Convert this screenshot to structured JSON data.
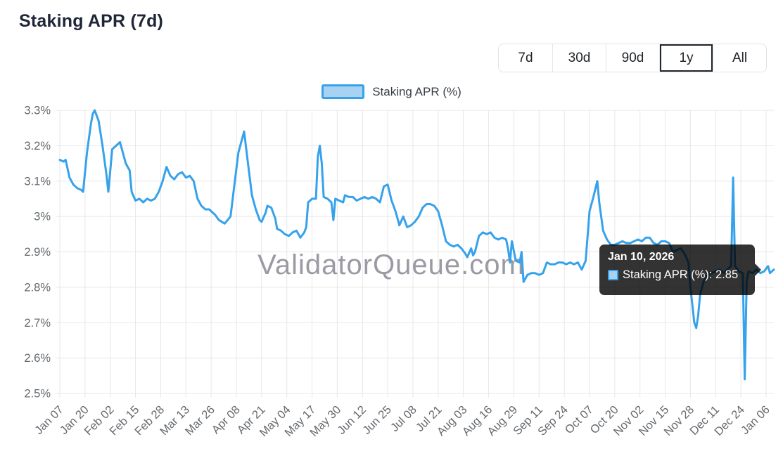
{
  "page": {
    "title": "Staking APR (7d)"
  },
  "range_buttons": {
    "items": [
      {
        "label": "7d",
        "selected": false
      },
      {
        "label": "30d",
        "selected": false
      },
      {
        "label": "90d",
        "selected": false
      },
      {
        "label": "1y",
        "selected": true
      },
      {
        "label": "All",
        "selected": false
      }
    ]
  },
  "legend": {
    "label": "Staking APR (%)"
  },
  "tooltip": {
    "title": "Jan 10, 2026",
    "body": "Staking APR (%): 2.85"
  },
  "colors": {
    "accent": "#36A2EB",
    "accent_fill": "#A8D2F2",
    "title_text": "#1f2638",
    "tooltip_bg": "rgba(0,0,0,0.8)"
  },
  "chart_data": {
    "type": "line",
    "title": "Staking APR (7d)",
    "x_unit": "days since Jan 07 (daily samples, Jan 07 2025 - Jan 10 2026)",
    "ylabel": "Staking APR (%)",
    "xlim": [
      0,
      368
    ],
    "ylim": [
      2.5,
      3.3
    ],
    "grid": true,
    "grid_color": "#e7e7e7",
    "tick_color": "#65696d",
    "line_color": "#36A2EB",
    "watermark": "ValidatorQueue.com",
    "watermark_color": "#9a9aa4",
    "legend_position": "top-center",
    "y_ticks": [
      {
        "pos": 3.3,
        "label": "3.3%"
      },
      {
        "pos": 3.2,
        "label": "3.2%"
      },
      {
        "pos": 3.1,
        "label": "3.1%"
      },
      {
        "pos": 3.0,
        "label": "3%"
      },
      {
        "pos": 2.9,
        "label": "2.9%"
      },
      {
        "pos": 2.8,
        "label": "2.8%"
      },
      {
        "pos": 2.7,
        "label": "2.7%"
      },
      {
        "pos": 2.6,
        "label": "2.6%"
      },
      {
        "pos": 2.5,
        "label": "2.5%"
      }
    ],
    "x_ticks": [
      {
        "pos": 0,
        "label": "Jan 07"
      },
      {
        "pos": 13,
        "label": "Jan 20"
      },
      {
        "pos": 26,
        "label": "Feb 02"
      },
      {
        "pos": 39,
        "label": "Feb 15"
      },
      {
        "pos": 52,
        "label": "Feb 28"
      },
      {
        "pos": 65,
        "label": "Mar 13"
      },
      {
        "pos": 78,
        "label": "Mar 26"
      },
      {
        "pos": 91,
        "label": "Apr 08"
      },
      {
        "pos": 104,
        "label": "Apr 21"
      },
      {
        "pos": 117,
        "label": "May 04"
      },
      {
        "pos": 130,
        "label": "May 17"
      },
      {
        "pos": 143,
        "label": "May 30"
      },
      {
        "pos": 156,
        "label": "Jun 12"
      },
      {
        "pos": 169,
        "label": "Jun 25"
      },
      {
        "pos": 182,
        "label": "Jul 08"
      },
      {
        "pos": 195,
        "label": "Jul 21"
      },
      {
        "pos": 208,
        "label": "Aug 03"
      },
      {
        "pos": 221,
        "label": "Aug 16"
      },
      {
        "pos": 234,
        "label": "Aug 29"
      },
      {
        "pos": 247,
        "label": "Sep 11"
      },
      {
        "pos": 260,
        "label": "Sep 24"
      },
      {
        "pos": 273,
        "label": "Oct 07"
      },
      {
        "pos": 286,
        "label": "Oct 20"
      },
      {
        "pos": 299,
        "label": "Nov 02"
      },
      {
        "pos": 312,
        "label": "Nov 15"
      },
      {
        "pos": 325,
        "label": "Nov 28"
      },
      {
        "pos": 338,
        "label": "Dec 11"
      },
      {
        "pos": 351,
        "label": "Dec 24"
      },
      {
        "pos": 364,
        "label": "Jan 06"
      }
    ],
    "series": [
      {
        "name": "Staking APR (%)",
        "color": "#36A2EB",
        "points": [
          [
            0,
            3.16
          ],
          [
            2,
            3.155
          ],
          [
            3,
            3.16
          ],
          [
            5,
            3.11
          ],
          [
            7,
            3.09
          ],
          [
            9,
            3.08
          ],
          [
            11,
            3.075
          ],
          [
            12,
            3.07
          ],
          [
            14,
            3.18
          ],
          [
            16,
            3.26
          ],
          [
            17,
            3.29
          ],
          [
            18,
            3.3
          ],
          [
            20,
            3.27
          ],
          [
            22,
            3.2
          ],
          [
            24,
            3.12
          ],
          [
            25,
            3.07
          ],
          [
            27,
            3.19
          ],
          [
            29,
            3.2
          ],
          [
            31,
            3.21
          ],
          [
            32,
            3.19
          ],
          [
            34,
            3.15
          ],
          [
            36,
            3.13
          ],
          [
            37,
            3.07
          ],
          [
            39,
            3.045
          ],
          [
            41,
            3.05
          ],
          [
            43,
            3.04
          ],
          [
            45,
            3.05
          ],
          [
            47,
            3.045
          ],
          [
            49,
            3.05
          ],
          [
            51,
            3.07
          ],
          [
            53,
            3.1
          ],
          [
            55,
            3.14
          ],
          [
            57,
            3.115
          ],
          [
            59,
            3.105
          ],
          [
            61,
            3.12
          ],
          [
            63,
            3.125
          ],
          [
            65,
            3.11
          ],
          [
            67,
            3.115
          ],
          [
            69,
            3.1
          ],
          [
            71,
            3.05
          ],
          [
            73,
            3.03
          ],
          [
            75,
            3.02
          ],
          [
            77,
            3.02
          ],
          [
            78,
            3.015
          ],
          [
            80,
            3.005
          ],
          [
            82,
            2.99
          ],
          [
            85,
            2.98
          ],
          [
            88,
            3.0
          ],
          [
            90,
            3.09
          ],
          [
            92,
            3.18
          ],
          [
            95,
            3.24
          ],
          [
            97,
            3.15
          ],
          [
            99,
            3.06
          ],
          [
            101,
            3.02
          ],
          [
            103,
            2.99
          ],
          [
            104,
            2.985
          ],
          [
            106,
            3.01
          ],
          [
            107,
            3.03
          ],
          [
            109,
            3.025
          ],
          [
            111,
            2.995
          ],
          [
            112,
            2.965
          ],
          [
            114,
            2.96
          ],
          [
            116,
            2.95
          ],
          [
            118,
            2.945
          ],
          [
            120,
            2.955
          ],
          [
            122,
            2.96
          ],
          [
            124,
            2.94
          ],
          [
            126,
            2.955
          ],
          [
            127,
            2.97
          ],
          [
            128,
            3.04
          ],
          [
            130,
            3.05
          ],
          [
            132,
            3.05
          ],
          [
            133,
            3.17
          ],
          [
            134,
            3.2
          ],
          [
            135,
            3.15
          ],
          [
            136,
            3.055
          ],
          [
            138,
            3.05
          ],
          [
            140,
            3.04
          ],
          [
            141,
            2.99
          ],
          [
            142,
            3.05
          ],
          [
            144,
            3.045
          ],
          [
            146,
            3.04
          ],
          [
            147,
            3.06
          ],
          [
            149,
            3.055
          ],
          [
            151,
            3.055
          ],
          [
            153,
            3.045
          ],
          [
            155,
            3.05
          ],
          [
            157,
            3.055
          ],
          [
            159,
            3.05
          ],
          [
            161,
            3.055
          ],
          [
            163,
            3.05
          ],
          [
            165,
            3.04
          ],
          [
            167,
            3.085
          ],
          [
            169,
            3.09
          ],
          [
            171,
            3.045
          ],
          [
            173,
            3.015
          ],
          [
            175,
            2.975
          ],
          [
            177,
            3.0
          ],
          [
            179,
            2.97
          ],
          [
            181,
            2.975
          ],
          [
            183,
            2.985
          ],
          [
            185,
            3.0
          ],
          [
            187,
            3.025
          ],
          [
            189,
            3.035
          ],
          [
            191,
            3.035
          ],
          [
            193,
            3.03
          ],
          [
            195,
            3.015
          ],
          [
            197,
            2.975
          ],
          [
            199,
            2.93
          ],
          [
            201,
            2.92
          ],
          [
            203,
            2.915
          ],
          [
            205,
            2.92
          ],
          [
            207,
            2.91
          ],
          [
            209,
            2.895
          ],
          [
            210,
            2.885
          ],
          [
            212,
            2.91
          ],
          [
            213,
            2.89
          ],
          [
            214,
            2.9
          ],
          [
            216,
            2.945
          ],
          [
            218,
            2.955
          ],
          [
            220,
            2.95
          ],
          [
            222,
            2.955
          ],
          [
            224,
            2.94
          ],
          [
            226,
            2.935
          ],
          [
            228,
            2.94
          ],
          [
            230,
            2.935
          ],
          [
            231,
            2.91
          ],
          [
            232,
            2.87
          ],
          [
            233,
            2.93
          ],
          [
            235,
            2.875
          ],
          [
            237,
            2.87
          ],
          [
            238,
            2.9
          ],
          [
            239,
            2.815
          ],
          [
            241,
            2.835
          ],
          [
            243,
            2.84
          ],
          [
            245,
            2.84
          ],
          [
            247,
            2.835
          ],
          [
            249,
            2.84
          ],
          [
            251,
            2.87
          ],
          [
            253,
            2.865
          ],
          [
            255,
            2.865
          ],
          [
            257,
            2.87
          ],
          [
            259,
            2.87
          ],
          [
            261,
            2.865
          ],
          [
            263,
            2.87
          ],
          [
            265,
            2.865
          ],
          [
            267,
            2.87
          ],
          [
            269,
            2.85
          ],
          [
            271,
            2.875
          ],
          [
            273,
            3.015
          ],
          [
            275,
            3.055
          ],
          [
            277,
            3.1
          ],
          [
            278,
            3.04
          ],
          [
            280,
            2.96
          ],
          [
            282,
            2.935
          ],
          [
            284,
            2.92
          ],
          [
            286,
            2.92
          ],
          [
            288,
            2.925
          ],
          [
            290,
            2.93
          ],
          [
            292,
            2.925
          ],
          [
            294,
            2.925
          ],
          [
            296,
            2.93
          ],
          [
            298,
            2.935
          ],
          [
            300,
            2.93
          ],
          [
            302,
            2.94
          ],
          [
            304,
            2.94
          ],
          [
            306,
            2.925
          ],
          [
            308,
            2.92
          ],
          [
            310,
            2.93
          ],
          [
            312,
            2.93
          ],
          [
            314,
            2.925
          ],
          [
            316,
            2.9
          ],
          [
            318,
            2.905
          ],
          [
            320,
            2.91
          ],
          [
            322,
            2.895
          ],
          [
            324,
            2.87
          ],
          [
            325,
            2.8
          ],
          [
            327,
            2.7
          ],
          [
            328,
            2.685
          ],
          [
            329,
            2.72
          ],
          [
            330,
            2.78
          ],
          [
            332,
            2.82
          ],
          [
            334,
            2.835
          ],
          [
            336,
            2.84
          ],
          [
            338,
            2.845
          ],
          [
            340,
            2.85
          ],
          [
            342,
            2.84
          ],
          [
            344,
            2.85
          ],
          [
            346,
            2.86
          ],
          [
            347,
            3.11
          ],
          [
            348,
            2.86
          ],
          [
            350,
            2.845
          ],
          [
            352,
            2.84
          ],
          [
            353,
            2.54
          ],
          [
            354,
            2.82
          ],
          [
            355,
            2.845
          ],
          [
            357,
            2.84
          ],
          [
            359,
            2.85
          ],
          [
            361,
            2.84
          ],
          [
            363,
            2.845
          ],
          [
            365,
            2.86
          ],
          [
            366,
            2.84
          ],
          [
            368,
            2.85
          ]
        ]
      }
    ],
    "tooltip_point": {
      "x_label": "Jan 10, 2026",
      "value": 2.85
    }
  }
}
